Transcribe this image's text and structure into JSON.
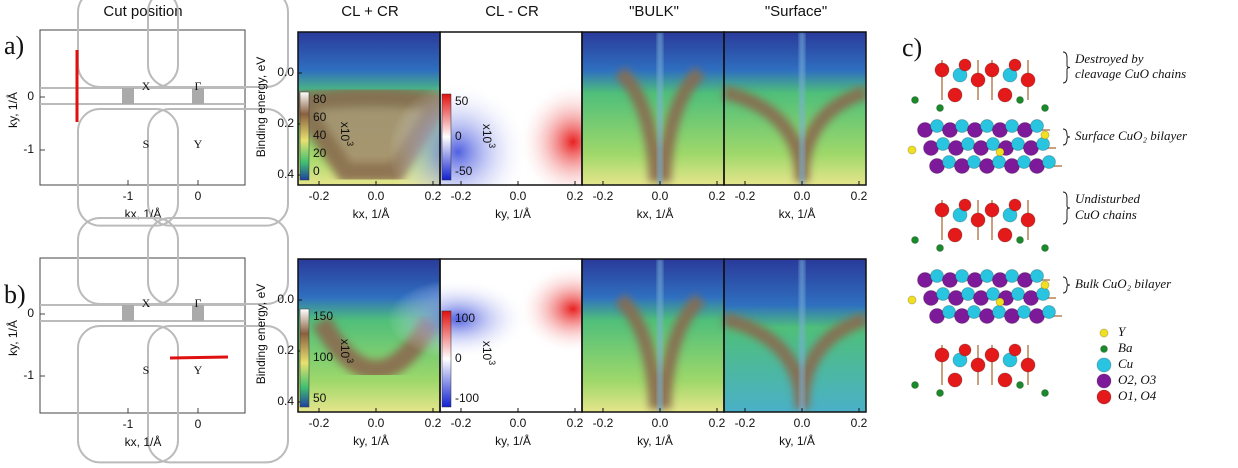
{
  "columns": [
    "Cut position",
    "CL + CR",
    "CL - CR",
    "\"BULK\"",
    "\"Surface\""
  ],
  "rows": [
    {
      "label": "a)",
      "bz": {
        "x_label": "kx, 1/Å",
        "y_label": "ky, 1/Å",
        "x_ticks": [
          "-1",
          "0"
        ],
        "y_ticks": [
          "0",
          "-1"
        ],
        "points": [
          "X",
          "Γ",
          "S",
          "Y"
        ]
      },
      "energy_label": "Binding energy, eV",
      "energy_ticks": [
        "0.0",
        "0.2",
        "0.4"
      ],
      "k_ticks": [
        "-0.2",
        "0.0",
        "0.2"
      ],
      "k_labels": [
        "kx, 1/Å",
        "ky, 1/Å",
        "kx, 1/Å",
        "kx, 1/Å"
      ],
      "sum_bar": {
        "ticks": [
          "80",
          "60",
          "40",
          "20",
          "0"
        ],
        "unit": "x10",
        "exponent": "3"
      },
      "diff_bar": {
        "ticks": [
          "50",
          "0",
          "-50"
        ],
        "unit": "x10",
        "exponent": "3"
      }
    },
    {
      "label": "b)",
      "bz": {
        "x_label": "kx, 1/Å",
        "y_label": "ky, 1/Å",
        "x_ticks": [
          "-1",
          "0"
        ],
        "y_ticks": [
          "0",
          "-1"
        ],
        "points": [
          "X",
          "Γ",
          "S",
          "Y"
        ]
      },
      "energy_label": "Binding energy, eV",
      "energy_ticks": [
        "0.0",
        "0.2",
        "0.4"
      ],
      "k_ticks": [
        "-0.2",
        "0.0",
        "0.2"
      ],
      "k_labels": [
        "ky, 1/Å",
        "ky, 1/Å",
        "ky, 1/Å",
        "ky, 1/Å"
      ],
      "sum_bar": {
        "ticks": [
          "150",
          "100",
          "50"
        ],
        "unit": "x10",
        "exponent": "3"
      },
      "diff_bar": {
        "ticks": [
          "100",
          "0",
          "-100"
        ],
        "unit": "x10",
        "exponent": "3"
      }
    }
  ],
  "structure": {
    "label": "c)",
    "annotations": [
      [
        "Destroyed by",
        "cleavage CuO chains"
      ],
      [
        "Surface CuO₂ bilayer"
      ],
      [
        "Undisturbed",
        "CuO chains"
      ],
      [
        "Bulk CuO₂ bilayer"
      ]
    ],
    "legend": [
      "Y",
      "Ba",
      "Cu",
      "O2, O3",
      "O1, O4"
    ]
  }
}
